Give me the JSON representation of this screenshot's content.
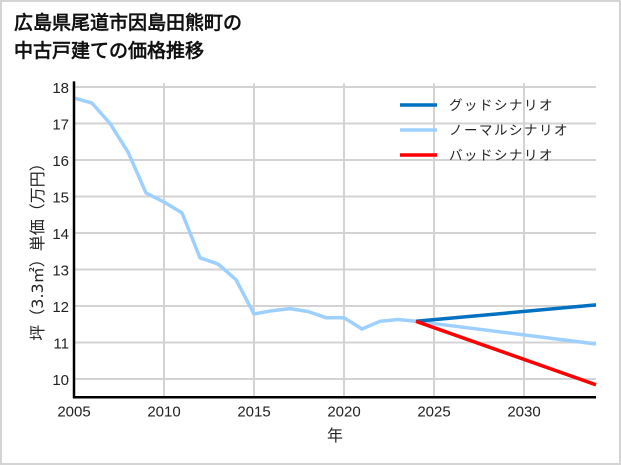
{
  "title": "広島県尾道市因島田熊町の\n中古戸建ての価格推移",
  "chart_data": {
    "type": "line",
    "title": "広島県尾道市因島田熊町の中古戸建ての価格推移",
    "xlabel": "年",
    "ylabel": "坪（3.3㎡）単価（万円）",
    "xlim": [
      2005,
      2034
    ],
    "ylim": [
      9.5,
      18.1
    ],
    "x_ticks": [
      2005,
      2010,
      2015,
      2020,
      2025,
      2030
    ],
    "y_ticks": [
      10,
      11,
      12,
      13,
      14,
      15,
      16,
      17,
      18
    ],
    "grid": true,
    "legend_position": "upper right",
    "series": [
      {
        "name": "グッドシナリオ",
        "color": "#0070C0",
        "x": [
          2024,
          2034
        ],
        "values": [
          11.58,
          12.03
        ]
      },
      {
        "name": "ノーマルシナリオ",
        "color": "#9DD0FF",
        "x": [
          2005,
          2006,
          2007,
          2008,
          2009,
          2010,
          2011,
          2012,
          2013,
          2014,
          2015,
          2016,
          2017,
          2018,
          2019,
          2020,
          2021,
          2022,
          2023,
          2024,
          2034
        ],
        "values": [
          17.7,
          17.56,
          17.0,
          16.22,
          15.1,
          14.85,
          14.55,
          13.32,
          13.15,
          12.72,
          11.78,
          11.87,
          11.93,
          11.85,
          11.68,
          11.68,
          11.37,
          11.58,
          11.63,
          11.58,
          10.96
        ]
      },
      {
        "name": "バッドシナリオ",
        "color": "#FF0000",
        "x": [
          2024,
          2034
        ],
        "values": [
          11.58,
          9.84
        ]
      }
    ]
  }
}
